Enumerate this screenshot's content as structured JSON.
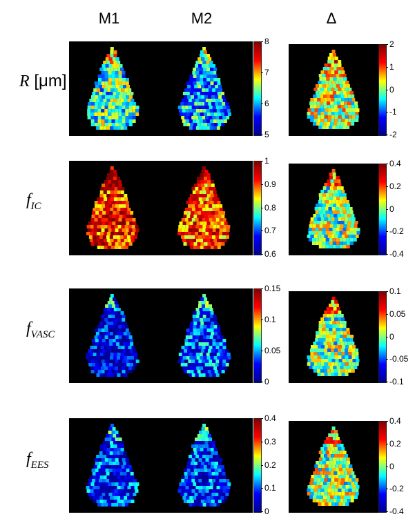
{
  "columns": [
    "M1",
    "M2",
    "Δ"
  ],
  "rows": [
    {
      "label_main": "R",
      "label_sub": "",
      "label_unit": " [μm]",
      "m_ticks": [
        "8",
        "7",
        "6",
        "5"
      ],
      "d_ticks": [
        "2",
        "1",
        "0",
        "-1",
        "-2"
      ]
    },
    {
      "label_main": "f",
      "label_sub": "IC",
      "label_unit": "",
      "m_ticks": [
        "1",
        "0.9",
        "0.8",
        "0.7",
        "0.6"
      ],
      "d_ticks": [
        "0.4",
        "0.2",
        "0",
        "-0.2",
        "-0.4"
      ]
    },
    {
      "label_main": "f",
      "label_sub": "VASC",
      "label_unit": "",
      "m_ticks": [
        "0.15",
        "0.1",
        "0.05",
        "0"
      ],
      "d_ticks": [
        "0.1",
        "0.05",
        "0",
        "-0.05",
        "-0.1"
      ]
    },
    {
      "label_main": "f",
      "label_sub": "EES",
      "label_unit": "",
      "m_ticks": [
        "0.4",
        "0.3",
        "0.2",
        "0.1",
        "0"
      ],
      "d_ticks": [
        "0.4",
        "0.2",
        "0",
        "-0.2",
        "-0.4"
      ]
    }
  ],
  "colormap": [
    "#00008f",
    "#0000ff",
    "#00ffff",
    "#ffff00",
    "#ff0000",
    "#800000"
  ],
  "map_levels": {
    "r0": {
      "m1": 0.45,
      "m2": 0.35,
      "d": 0.55
    },
    "r1": {
      "m1": 0.8,
      "m2": 0.75,
      "d": 0.5
    },
    "r2": {
      "m1": 0.15,
      "m2": 0.25,
      "d": 0.5
    },
    "r3": {
      "m1": 0.2,
      "m2": 0.22,
      "d": 0.52
    }
  }
}
